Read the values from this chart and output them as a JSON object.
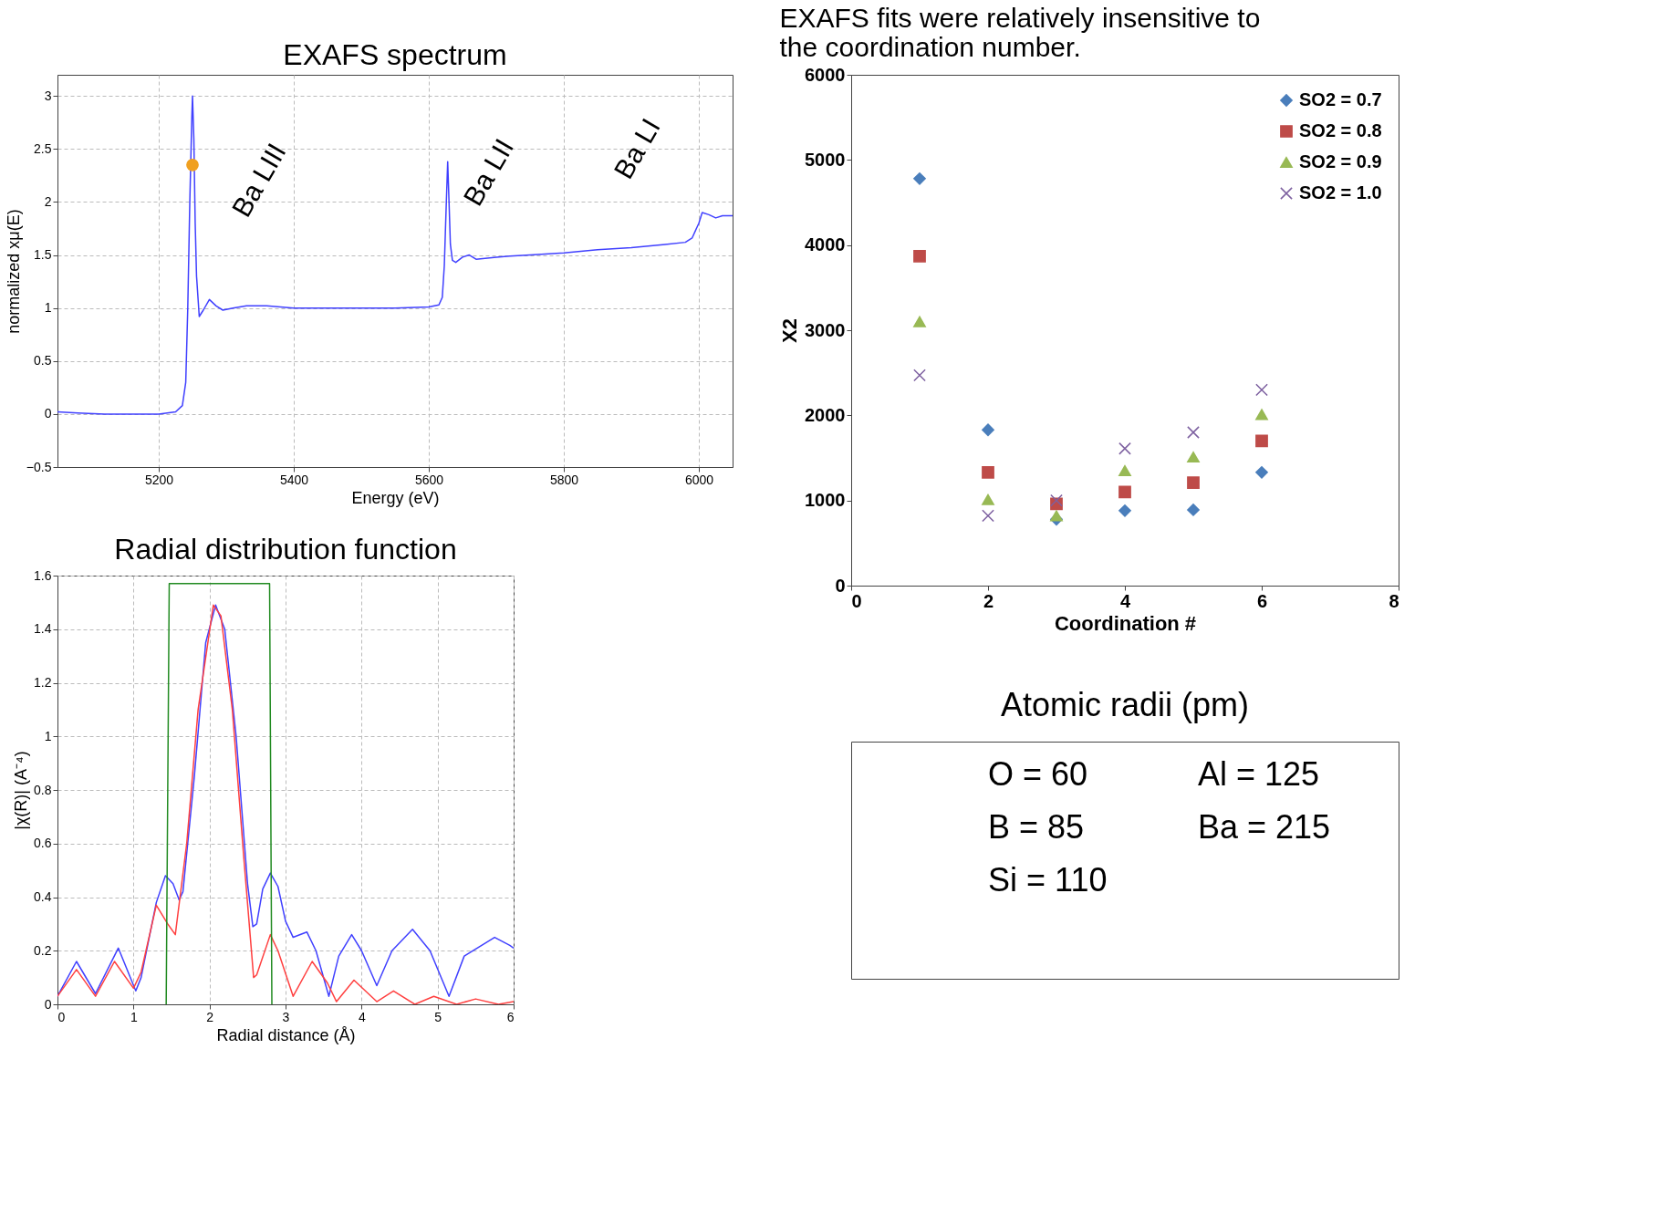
{
  "chart_data": [
    {
      "type": "line",
      "title": "EXAFS spectrum",
      "xlabel": "Energy    (eV)",
      "ylabel": "normalized xμ(E)",
      "xlim": [
        5050,
        6050
      ],
      "xticks": [
        5200,
        5400,
        5600,
        5800,
        6000
      ],
      "ylim": [
        -0.5,
        3.2
      ],
      "yticks": [
        -0.5,
        0,
        0.5,
        1,
        1.5,
        2,
        2.5,
        3
      ],
      "grid": true,
      "line_style": "solid",
      "series": [
        {
          "color": "#4040ff",
          "x": [
            5050,
            5080,
            5120,
            5160,
            5200,
            5225,
            5235,
            5240,
            5243,
            5246,
            5249,
            5250,
            5252,
            5254,
            5256,
            5260,
            5266,
            5275,
            5285,
            5295,
            5310,
            5330,
            5360,
            5400,
            5450,
            5500,
            5550,
            5600,
            5615,
            5620,
            5623,
            5626,
            5628,
            5630,
            5632,
            5635,
            5640,
            5650,
            5660,
            5670,
            5700,
            5720,
            5750,
            5800,
            5850,
            5900,
            5950,
            5980,
            5990,
            6000,
            6005,
            6015,
            6025,
            6035,
            6050
          ],
          "values": [
            0.02,
            0.01,
            0.0,
            0.0,
            0.0,
            0.02,
            0.08,
            0.3,
            1.0,
            2.0,
            2.8,
            3.0,
            2.6,
            1.8,
            1.3,
            0.92,
            0.98,
            1.08,
            1.02,
            0.98,
            1.0,
            1.02,
            1.02,
            1.0,
            1.0,
            1.0,
            1.0,
            1.01,
            1.03,
            1.1,
            1.4,
            2.0,
            2.38,
            2.0,
            1.6,
            1.45,
            1.43,
            1.48,
            1.5,
            1.46,
            1.48,
            1.49,
            1.5,
            1.52,
            1.55,
            1.57,
            1.6,
            1.62,
            1.66,
            1.8,
            1.9,
            1.88,
            1.85,
            1.87,
            1.87
          ]
        },
        {
          "type": "scatter",
          "marker": "circle",
          "color": "#f0a020",
          "x": [
            5250
          ],
          "values": [
            2.35
          ]
        }
      ],
      "annotations": [
        "Ba LIII",
        "Ba LII",
        "Ba LI"
      ]
    },
    {
      "type": "line",
      "title": "Radial distribution function",
      "xlabel": "Radial distance (Å)",
      "ylabel": "|χ(R)|   (A⁻⁴)",
      "xlim": [
        0,
        6
      ],
      "xticks": [
        0,
        1,
        2,
        3,
        4,
        5,
        6
      ],
      "ylim": [
        0,
        1.6
      ],
      "yticks": [
        0,
        0.2,
        0.4,
        0.6,
        0.8,
        1,
        1.2,
        1.4,
        1.6
      ],
      "grid": true,
      "line_style": "solid",
      "series": [
        {
          "color": "#4040ff",
          "x": [
            0,
            0.25,
            0.5,
            0.8,
            1.03,
            1.1,
            1.3,
            1.42,
            1.52,
            1.6,
            1.65,
            1.8,
            1.95,
            2.08,
            2.2,
            2.35,
            2.5,
            2.57,
            2.62,
            2.7,
            2.8,
            2.9,
            3.0,
            3.1,
            3.28,
            3.4,
            3.57,
            3.7,
            3.87,
            4.0,
            4.2,
            4.4,
            4.67,
            4.9,
            5.15,
            5.35,
            5.75,
            5.95,
            6
          ],
          "values": [
            0.03,
            0.16,
            0.04,
            0.21,
            0.05,
            0.1,
            0.38,
            0.48,
            0.45,
            0.39,
            0.42,
            0.85,
            1.35,
            1.49,
            1.4,
            1.0,
            0.45,
            0.29,
            0.3,
            0.43,
            0.49,
            0.44,
            0.31,
            0.25,
            0.27,
            0.2,
            0.03,
            0.18,
            0.26,
            0.2,
            0.07,
            0.2,
            0.28,
            0.2,
            0.03,
            0.18,
            0.25,
            0.22,
            0.21
          ]
        },
        {
          "color": "#ff4040",
          "x": [
            0,
            0.25,
            0.5,
            0.75,
            1.0,
            1.1,
            1.3,
            1.45,
            1.55,
            1.7,
            1.85,
            2.05,
            2.15,
            2.3,
            2.45,
            2.58,
            2.62,
            2.8,
            2.9,
            3.1,
            3.35,
            3.55,
            3.67,
            3.9,
            4.2,
            4.42,
            4.7,
            4.95,
            5.25,
            5.5,
            5.8,
            6
          ],
          "values": [
            0.03,
            0.13,
            0.03,
            0.16,
            0.06,
            0.12,
            0.37,
            0.3,
            0.26,
            0.6,
            1.1,
            1.49,
            1.45,
            1.1,
            0.55,
            0.1,
            0.11,
            0.26,
            0.2,
            0.03,
            0.16,
            0.08,
            0.01,
            0.09,
            0.01,
            0.05,
            0.0,
            0.03,
            0.0,
            0.02,
            0.0,
            0.01
          ]
        },
        {
          "color": "#228b22",
          "x": [
            1.43,
            1.47,
            2.79,
            2.82
          ],
          "values": [
            0,
            1.57,
            1.57,
            0
          ]
        }
      ]
    },
    {
      "type": "scatter",
      "title": "EXAFS fits were relatively insensitive to the coordination number.",
      "xlabel": "Coordination #",
      "ylabel": "X2",
      "xlim": [
        0,
        8
      ],
      "xticks": [
        0,
        2,
        4,
        6,
        8
      ],
      "ylim": [
        0,
        6000
      ],
      "yticks": [
        0,
        1000,
        2000,
        3000,
        4000,
        5000,
        6000
      ],
      "legend": "top right",
      "x": [
        1,
        2,
        3,
        4,
        5,
        6
      ],
      "series": [
        {
          "name": "SO2 = 0.7",
          "color": "#4a7ebb",
          "marker": "diamond",
          "values": [
            4780,
            1830,
            780,
            880,
            890,
            1330
          ]
        },
        {
          "name": "SO2 = 0.8",
          "color": "#be4b48",
          "marker": "square",
          "values": [
            3870,
            1330,
            960,
            1100,
            1210,
            1700
          ]
        },
        {
          "name": "SO2 = 0.9",
          "color": "#98b954",
          "marker": "triangle",
          "values": [
            3100,
            1010,
            820,
            1350,
            1510,
            2010
          ]
        },
        {
          "name": "SO2 = 1.0",
          "color": "#7d60a0",
          "marker": "cross",
          "values": [
            2470,
            820,
            1000,
            1610,
            1800,
            2300
          ]
        }
      ]
    },
    {
      "type": "other",
      "title": "Atomic radii (pm)",
      "annotations": [
        "O = 60",
        "Al = 125",
        "B = 85",
        "Ba = 215",
        "Si = 110"
      ]
    }
  ]
}
